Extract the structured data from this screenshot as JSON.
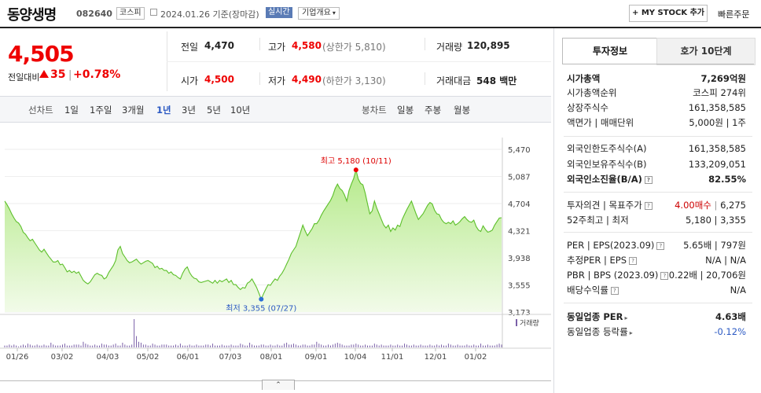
{
  "header": {
    "stock_name": "동양생명",
    "stock_code": "082640",
    "market": "코스피",
    "date": "2024.01.26 기준(장마감)",
    "realtime": "실시간",
    "company_info": "기업개요",
    "mystock_btn": "+ MY STOCK 추가",
    "quick_order": "빠른주문"
  },
  "price": {
    "current": "4,505",
    "change_label": "전일대비",
    "change": "35",
    "change_rate": "+0.78%"
  },
  "summary": {
    "prev_close_label": "전일",
    "prev_close": "4,470",
    "high_label": "고가",
    "high": "4,580",
    "upper_limit": "(상한가 5,810)",
    "volume_label": "거래량",
    "volume": "120,895",
    "open_label": "시가",
    "open": "4,500",
    "low_label": "저가",
    "low": "4,490",
    "lower_limit": "(하한가 3,130)",
    "amount_label": "거래대금",
    "amount": "548 백만"
  },
  "period_tabs": {
    "line_label": "선차트",
    "items": [
      "1일",
      "1주일",
      "3개월",
      "1년",
      "3년",
      "5년",
      "10년"
    ],
    "active": "1년",
    "candle_label": "봉차트",
    "candle_items": [
      "일봉",
      "주봉",
      "월봉"
    ]
  },
  "chart_data": {
    "type": "area",
    "x_tick_labels": [
      "01/26",
      "03/02",
      "04/03",
      "05/02",
      "06/01",
      "07/03",
      "08/01",
      "09/01",
      "10/04",
      "11/01",
      "12/01",
      "01/02"
    ],
    "y_tick_labels": [
      "5,470",
      "5,087",
      "4,704",
      "4,321",
      "3,938",
      "3,555",
      "3,173"
    ],
    "ylim": [
      3173,
      5470
    ],
    "high_annotation": "최고 5,180 (10/11)",
    "low_annotation": "최저 3,355 (07/27)",
    "volume_label": "거래량",
    "series": [
      {
        "values": [
          4740,
          4690,
          4630,
          4560,
          4500,
          4450,
          4430,
          4380,
          4300,
          4270,
          4220,
          4180,
          4200,
          4150,
          4100,
          4050,
          4020,
          4060,
          4010,
          3960,
          3920,
          3880,
          3880,
          3900,
          3840,
          3850,
          3800,
          3740,
          3760,
          3730,
          3750,
          3720,
          3740,
          3680,
          3620,
          3590,
          3570,
          3600,
          3650,
          3700,
          3720,
          3700,
          3690,
          3640,
          3660,
          3730,
          3780,
          3830,
          3900,
          4050,
          4100,
          4000,
          3950,
          3900,
          3870,
          3880,
          3900,
          3920,
          3880,
          3850,
          3870,
          3890,
          3900,
          3880,
          3860,
          3800,
          3820,
          3780,
          3790,
          3760,
          3760,
          3720,
          3740,
          3700,
          3690,
          3660,
          3640,
          3720,
          3780,
          3810,
          3730,
          3680,
          3650,
          3640,
          3600,
          3590,
          3600,
          3610,
          3620,
          3600,
          3580,
          3620,
          3580,
          3620,
          3600,
          3620,
          3640,
          3590,
          3620,
          3560,
          3560,
          3520,
          3490,
          3520,
          3510,
          3580,
          3600,
          3640,
          3580,
          3520,
          3440,
          3355,
          3430,
          3500,
          3560,
          3550,
          3600,
          3640,
          3620,
          3680,
          3720,
          3780,
          3850,
          3920,
          4000,
          4050,
          4100,
          4200,
          4300,
          4400,
          4320,
          4250,
          4300,
          4350,
          4420,
          4420,
          4470,
          4540,
          4600,
          4650,
          4700,
          4750,
          4820,
          4920,
          4980,
          4920,
          4890,
          4830,
          4740,
          4890,
          4980,
          5060,
          5180,
          5050,
          4990,
          4970,
          4850,
          4700,
          4560,
          4600,
          4740,
          4640,
          4560,
          4480,
          4400,
          4360,
          4400,
          4310,
          4360,
          4330,
          4400,
          4380,
          4480,
          4550,
          4620,
          4680,
          4740,
          4650,
          4560,
          4480,
          4520,
          4560,
          4620,
          4680,
          4720,
          4700,
          4610,
          4560,
          4550,
          4480,
          4440,
          4420,
          4440,
          4420,
          4460,
          4400,
          4420,
          4450,
          4490,
          4520,
          4480,
          4450,
          4440,
          4470,
          4380,
          4330,
          4310,
          4390,
          4340,
          4300,
          4310,
          4330,
          4400,
          4450,
          4500,
          4505
        ]
      }
    ],
    "volume_values": [
      2,
      2,
      3,
      2,
      3,
      2,
      1,
      2,
      3,
      2,
      4,
      3,
      2,
      2,
      3,
      2,
      2,
      3,
      2,
      2,
      5,
      3,
      2,
      2,
      2,
      3,
      4,
      2,
      2,
      2,
      3,
      3,
      3,
      2,
      6,
      4,
      3,
      2,
      2,
      3,
      2,
      2,
      4,
      3,
      3,
      2,
      2,
      3,
      4,
      2,
      2,
      5,
      3,
      2,
      2,
      3,
      30,
      12,
      6,
      5,
      3,
      3,
      2,
      2,
      4,
      3,
      2,
      2,
      3,
      3,
      3,
      2,
      2,
      2,
      3,
      2,
      4,
      2,
      2,
      2,
      3,
      2,
      2,
      3,
      2,
      2,
      2,
      3,
      3,
      2,
      4,
      2,
      2,
      2,
      3,
      2,
      2,
      2,
      3,
      2,
      2,
      2,
      4,
      3,
      2,
      2,
      5,
      3,
      2,
      2,
      2,
      3,
      3,
      2,
      2,
      3,
      2,
      2,
      3,
      2,
      2,
      4,
      5,
      3,
      3,
      4,
      3,
      2,
      2,
      3,
      3,
      2,
      2,
      3,
      3,
      6,
      4,
      3,
      2,
      2,
      3,
      2,
      3,
      4,
      5,
      4,
      3,
      2,
      2,
      2,
      3,
      3,
      4,
      3,
      2,
      2,
      3,
      2,
      2,
      2,
      4,
      3,
      2,
      3,
      2,
      2,
      2,
      3,
      2,
      2,
      3,
      2,
      2,
      4,
      3,
      2,
      2,
      3,
      2,
      2,
      3,
      2,
      2,
      2,
      3,
      2,
      2,
      3,
      2,
      3,
      2,
      2,
      4,
      3,
      2,
      2,
      3,
      2,
      2,
      2,
      3,
      2,
      2,
      3,
      2,
      2,
      4,
      2,
      2,
      3,
      2,
      2,
      2,
      3,
      4,
      3
    ]
  },
  "right_panel": {
    "tab1": "투자정보",
    "tab2": "호가 10단계",
    "group1": [
      {
        "label": "시가총액",
        "value": "7,269억원",
        "bold": true
      },
      {
        "label": "시가총액순위",
        "value": "코스피  274위"
      },
      {
        "label": "상장주식수",
        "value": "161,358,585"
      },
      {
        "label": "액면가 | 매매단위",
        "value": "5,000원 | 1주"
      }
    ],
    "group2": [
      {
        "label": "외국인한도주식수(A)",
        "value": "161,358,585"
      },
      {
        "label": "외국인보유주식수(B)",
        "value": "133,209,051"
      },
      {
        "label": "외국인소진율(B/A)",
        "value": "82.55%",
        "bold": true
      }
    ],
    "group3": [
      {
        "label": "투자의견 | 목표주가",
        "value_a": "4.00매수",
        "value_b": "6,275"
      },
      {
        "label": "52주최고 | 최저",
        "value": "5,180 | 3,355"
      }
    ],
    "group4": [
      {
        "label": "PER | EPS(2023.09)",
        "value": "5.65배 | 797원"
      },
      {
        "label": "추정PER | EPS",
        "value": "N/A | N/A"
      },
      {
        "label": "PBR | BPS (2023.09)",
        "value": "0.22배 | 20,706원"
      },
      {
        "label": "배당수익률",
        "value": "N/A"
      }
    ],
    "group5": [
      {
        "label": "동일업종 PER",
        "value": "4.63배",
        "bold": true
      },
      {
        "label": "동일업종 등락률",
        "value": "-0.12%"
      }
    ]
  },
  "bottom_tab": "⌃"
}
